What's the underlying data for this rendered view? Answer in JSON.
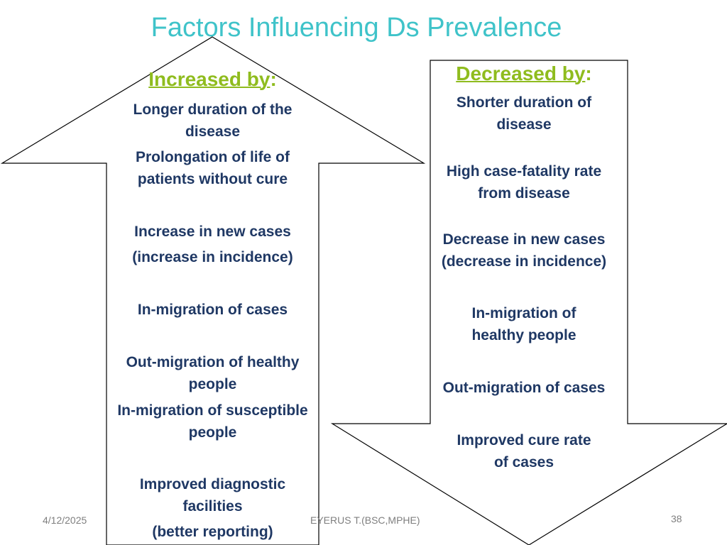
{
  "slide": {
    "title": "Factors Influencing Ds Prevalence",
    "number": "38",
    "date": "4/12/2025",
    "author": "EYERUS T.(BSC,MPHE)"
  },
  "increased": {
    "heading": "Increased by",
    "colon": ":",
    "items": [
      "Longer duration of the disease",
      "Prolongation of life of patients without cure",
      "Increase in new cases",
      "(increase in incidence)",
      "In-migration of cases",
      "Out-migration of healthy people",
      "In-migration of susceptible people",
      "Improved diagnostic facilities",
      "(better reporting)"
    ]
  },
  "decreased": {
    "heading": "Decreased by",
    "colon": ":",
    "items": [
      "Shorter  duration of disease",
      "High case-fatality rate from disease",
      "Decrease in new cases (decrease in incidence)",
      "In-migration of healthy people",
      "Out-migration of cases",
      "Improved cure rate of cases"
    ]
  },
  "colors": {
    "title": "#3fc3c9",
    "heading": "#8fbc1e",
    "body_text": "#1f3864",
    "arrow_outline": "#000000"
  }
}
